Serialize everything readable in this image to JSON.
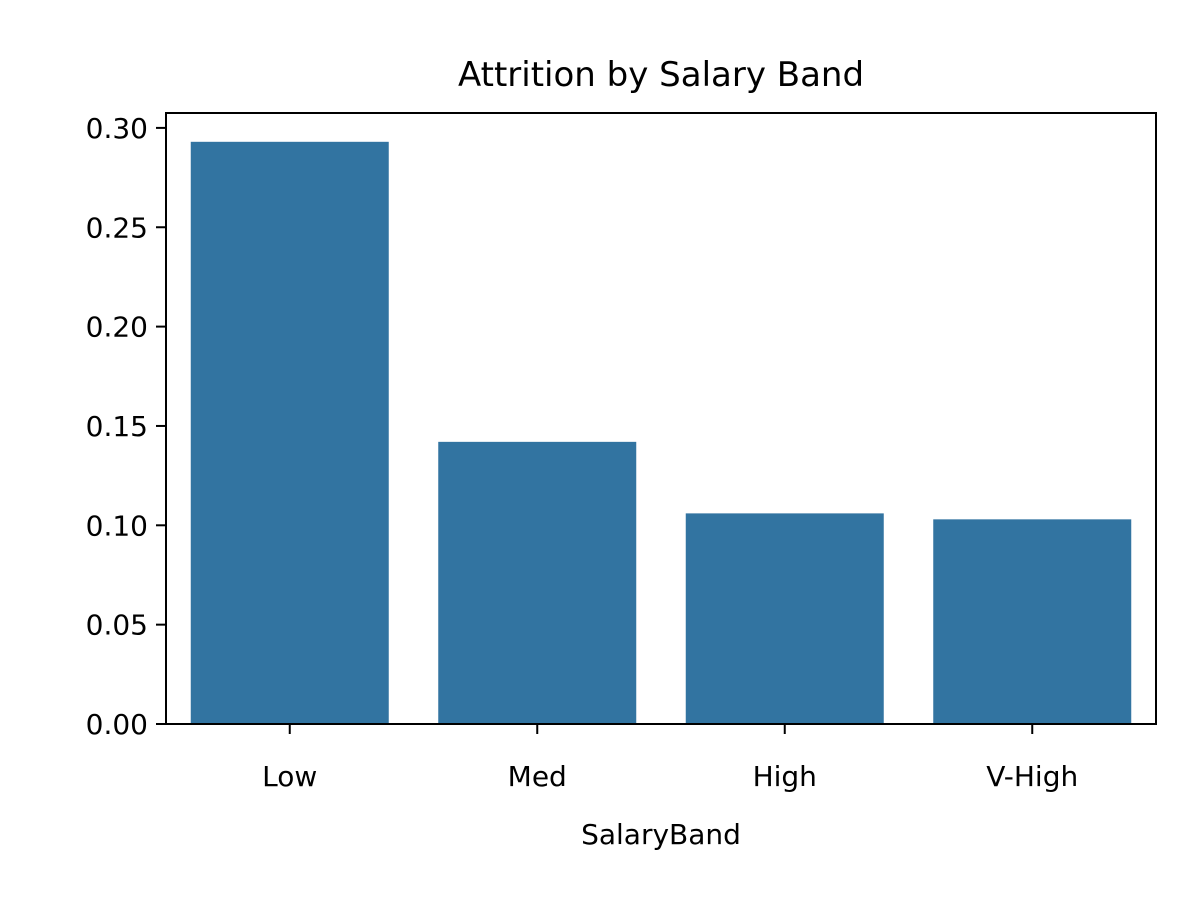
{
  "chart_data": {
    "type": "bar",
    "title": "Attrition by Salary Band",
    "xlabel": "SalaryBand",
    "ylabel": "",
    "categories": [
      "Low",
      "Med",
      "High",
      "V-High"
    ],
    "values": [
      0.293,
      0.142,
      0.106,
      0.103
    ],
    "ylim": [
      0,
      0.3075
    ],
    "yticks": [
      0.0,
      0.05,
      0.1,
      0.15,
      0.2,
      0.25,
      0.3
    ],
    "ytick_labels": [
      "0.00",
      "0.05",
      "0.10",
      "0.15",
      "0.20",
      "0.25",
      "0.30"
    ],
    "grid": false,
    "legend": "none",
    "bar_color": "#3274a1"
  }
}
